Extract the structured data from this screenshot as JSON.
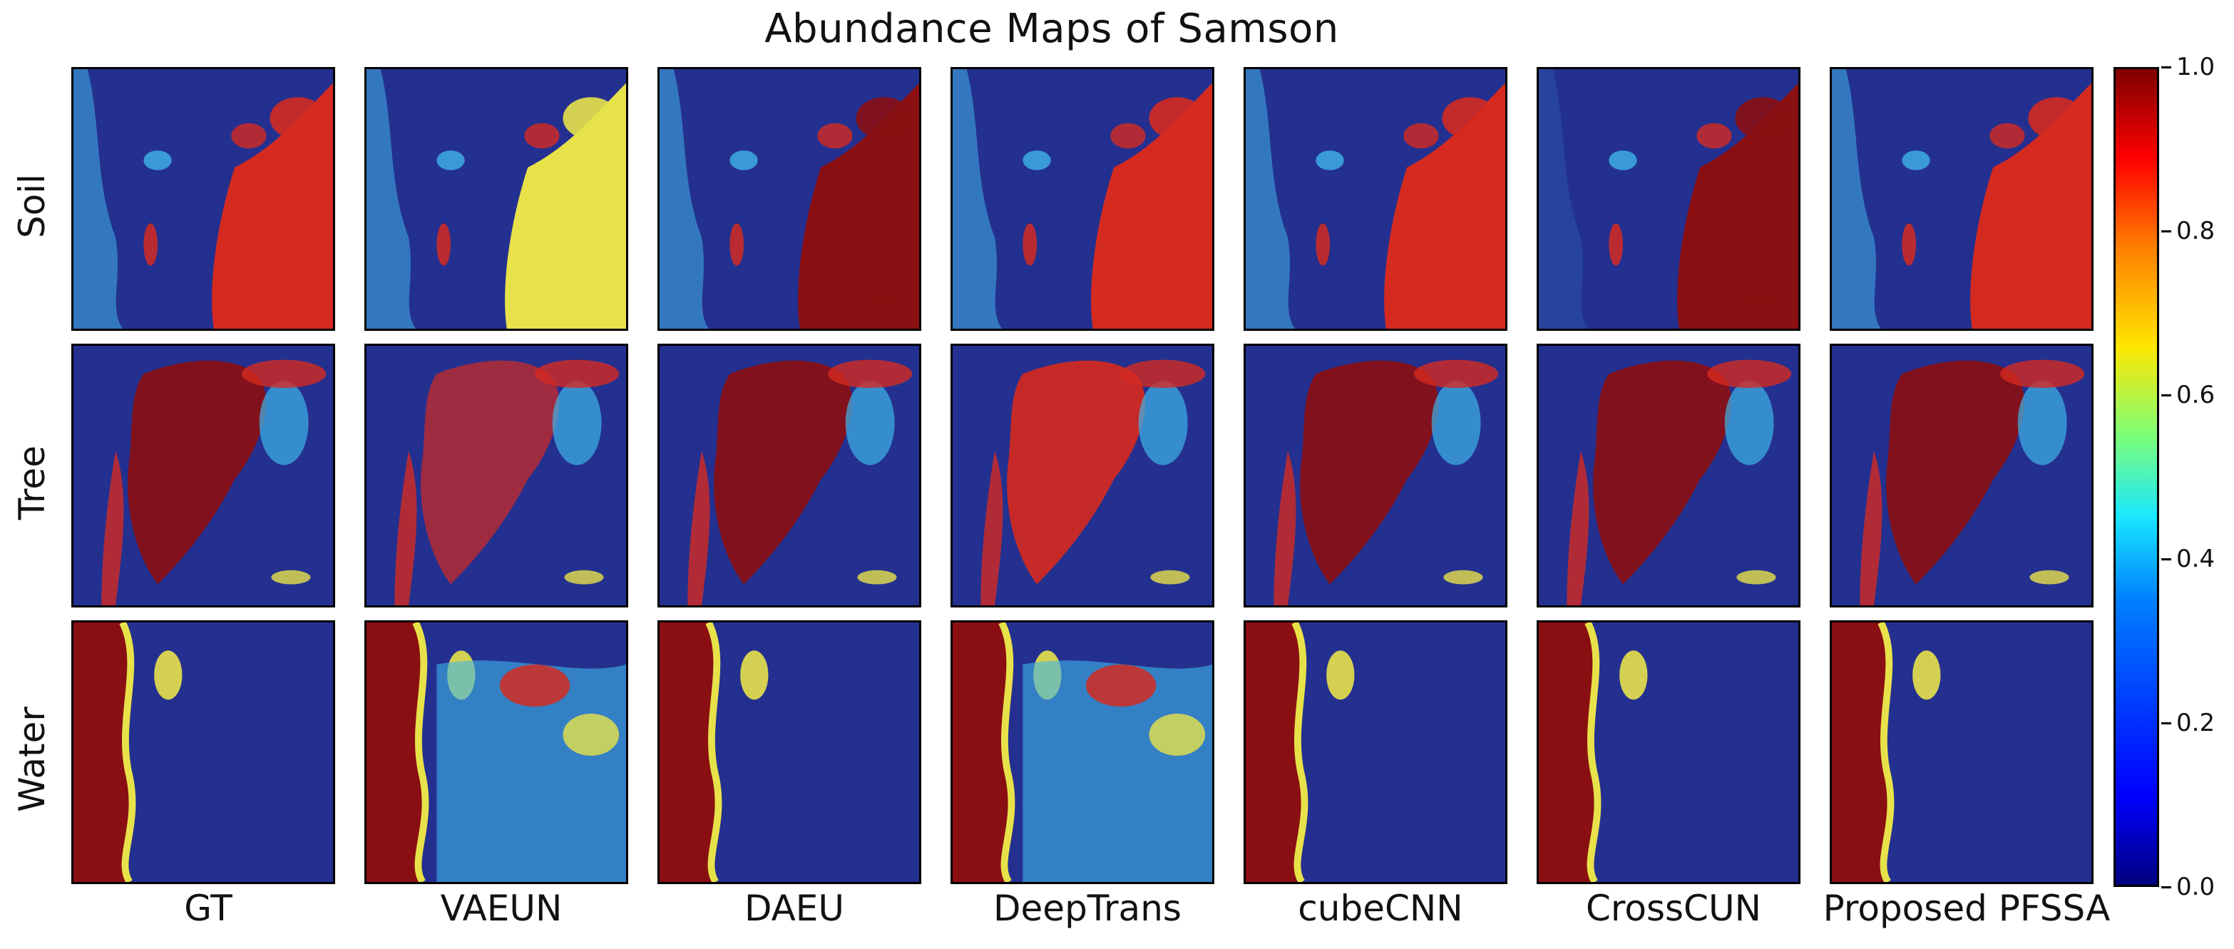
{
  "title": "Abundance Maps of Samson",
  "rows": [
    "Soil",
    "Tree",
    "Water"
  ],
  "columns": [
    "GT",
    "VAEUN",
    "DAEU",
    "DeepTrans",
    "cubeCNN",
    "CrossCUN",
    "Proposed PFSSA"
  ],
  "colorbar": {
    "ticks": [
      "0.0",
      "0.2",
      "0.4",
      "0.6",
      "0.8",
      "1.0"
    ],
    "colormap": "jet",
    "range": [
      0.0,
      1.0
    ]
  },
  "colors": {
    "low": "#24308f",
    "mid": "#3fb5e8",
    "high_mid": "#e8e24a",
    "high": "#d42a20",
    "max": "#8a0f12"
  }
}
